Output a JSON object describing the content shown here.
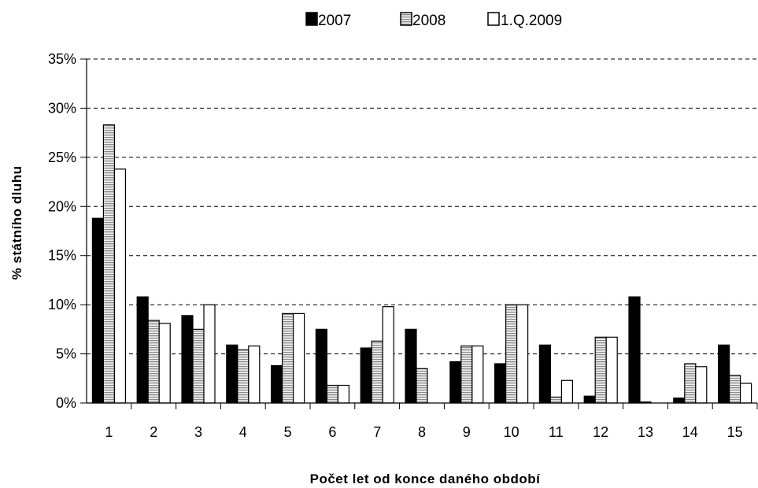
{
  "chart_data": {
    "type": "bar",
    "title": "",
    "xlabel": "Počet let od konce daného období",
    "ylabel": "% státního dluhu",
    "categories": [
      "1",
      "2",
      "3",
      "4",
      "5",
      "6",
      "7",
      "8",
      "9",
      "10",
      "11",
      "12",
      "13",
      "14",
      "15"
    ],
    "series": [
      {
        "name": "2007",
        "style": "solid",
        "color": "#000000",
        "values": [
          18.8,
          10.8,
          8.9,
          5.9,
          3.8,
          7.5,
          5.6,
          7.5,
          4.2,
          4.0,
          5.9,
          0.7,
          10.8,
          0.5,
          5.9
        ]
      },
      {
        "name": "2008",
        "style": "hatched",
        "color": "#bdbdbd",
        "values": [
          28.3,
          8.4,
          7.5,
          5.4,
          9.1,
          1.8,
          6.3,
          3.5,
          5.8,
          10.0,
          0.6,
          6.7,
          0.1,
          4.0,
          2.8
        ]
      },
      {
        "name": "1.Q.2009",
        "style": "empty",
        "color": "#ffffff",
        "values": [
          23.8,
          8.1,
          10.0,
          5.8,
          9.1,
          1.8,
          9.8,
          0.0,
          5.8,
          10.0,
          2.3,
          6.7,
          0.0,
          3.7,
          2.0
        ]
      }
    ],
    "ylim": [
      0,
      35
    ],
    "yticks": [
      0,
      5,
      10,
      15,
      20,
      25,
      30,
      35
    ],
    "ytick_labels": [
      "0%",
      "5%",
      "10%",
      "15%",
      "20%",
      "25%",
      "30%",
      "35%"
    ],
    "grid": "horizontal-dashed",
    "legend": "top-center"
  }
}
